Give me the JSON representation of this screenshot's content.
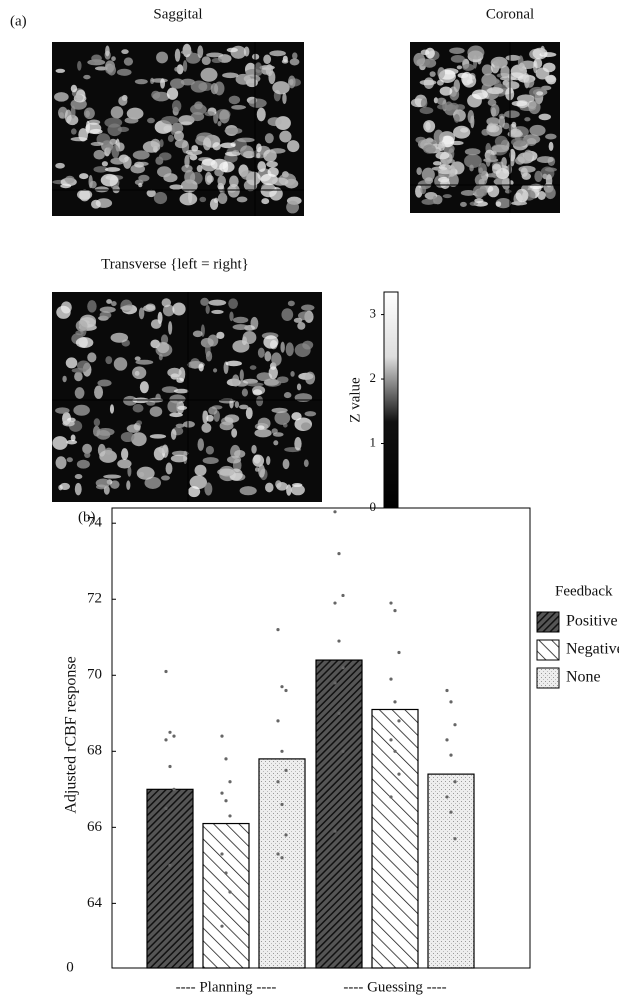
{
  "panel_a": {
    "label": "(a)",
    "views": [
      {
        "title": "Saggital"
      },
      {
        "title": "Coronal"
      },
      {
        "title": "Transverse {left = right}"
      }
    ],
    "colorbar": {
      "label": "Z value",
      "ylim": [
        0,
        3.35
      ],
      "yticks": [
        0,
        1,
        2,
        3
      ]
    }
  },
  "panel_b_label": "(b)",
  "chart_data": {
    "type": "bar",
    "ylabel": "Adjusted rCBF response",
    "categories": [
      "---- Planning ----",
      "---- Guessing ----"
    ],
    "series": [
      {
        "name": "Positive",
        "color": "#222222",
        "values": [
          67.0,
          70.4
        ],
        "points": [
          [
            70.1,
            68.5,
            68.4,
            68.3,
            67.6,
            67.0,
            66.5,
            65.0
          ],
          [
            74.3,
            73.2,
            72.1,
            71.9,
            70.9,
            70.2,
            69.8,
            69.0,
            68.0,
            65.9
          ]
        ]
      },
      {
        "name": "Negative",
        "color": "#ffffff",
        "values": [
          66.1,
          69.1
        ],
        "points": [
          [
            68.4,
            67.8,
            67.2,
            66.9,
            66.7,
            66.3,
            65.3,
            64.8,
            64.3,
            63.4
          ],
          [
            71.9,
            71.7,
            70.6,
            69.9,
            69.3,
            68.8,
            68.3,
            68.0,
            67.4,
            66.8
          ]
        ]
      },
      {
        "name": "None",
        "color": "#e4e4e4",
        "values": [
          67.8,
          67.4
        ],
        "points": [
          [
            71.2,
            69.7,
            69.6,
            68.8,
            68.0,
            67.5,
            67.2,
            66.6,
            65.8,
            65.3,
            65.2
          ],
          [
            69.6,
            69.3,
            68.7,
            68.3,
            67.9,
            67.2,
            66.8,
            66.4,
            65.7
          ]
        ]
      }
    ],
    "ylim": [
      62.3,
      74.4
    ],
    "yticks": [
      64,
      66,
      68,
      70,
      72,
      74
    ],
    "origin_label": "0",
    "legend_title": "Feedback",
    "legend_position": "outside right"
  }
}
